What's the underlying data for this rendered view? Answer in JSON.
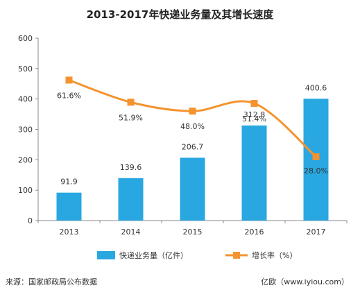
{
  "chart_data": {
    "type": "bar",
    "title": "2013-2017年快递业务量及其增长速度",
    "categories": [
      "2013",
      "2014",
      "2015",
      "2016",
      "2017"
    ],
    "series": [
      {
        "name": "快递业务量（亿件）",
        "type": "bar",
        "axis": "left",
        "values": [
          91.9,
          139.6,
          206.7,
          312.8,
          400.6
        ],
        "labels": [
          "91.9",
          "139.6",
          "206.7",
          "312.8",
          "400.6"
        ],
        "color": "#29a7e1"
      },
      {
        "name": "增长率（%）",
        "type": "line",
        "axis": "right (not drawn)",
        "values": [
          61.6,
          51.9,
          48.0,
          51.4,
          28.0
        ],
        "labels": [
          "61.6%",
          "51.9%",
          "48.0%",
          "51.4%",
          "28.0%"
        ],
        "color": "#f4932f"
      }
    ],
    "y_ticks": [
      "0",
      "100",
      "200",
      "300",
      "400",
      "500",
      "600"
    ],
    "ylim": [
      0,
      600
    ],
    "grid": false,
    "legend_position": "bottom"
  },
  "footer": {
    "source": "来源：国家邮政局公布数据",
    "brand": "亿欧（www.iyiou.com）"
  }
}
